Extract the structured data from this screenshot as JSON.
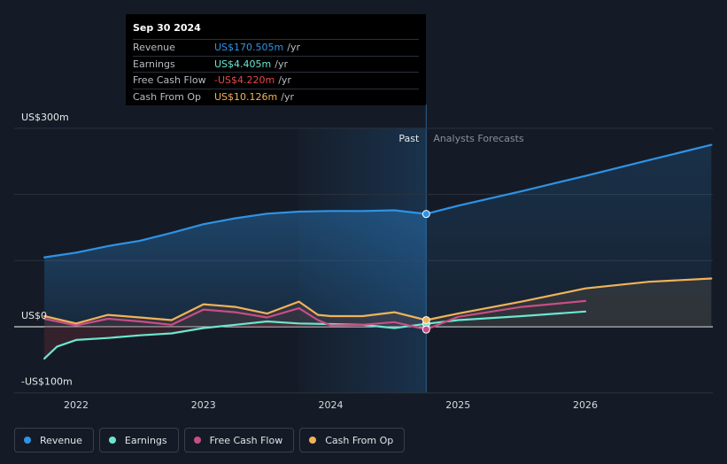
{
  "tooltip": {
    "date": "Sep 30 2024",
    "rows": [
      {
        "name": "Revenue",
        "value": "US$170.505m",
        "unit": "/yr",
        "color": "#2e93e6"
      },
      {
        "name": "Earnings",
        "value": "US$4.405m",
        "unit": "/yr",
        "color": "#6ce6cf"
      },
      {
        "name": "Free Cash Flow",
        "value": "-US$4.220m",
        "unit": "/yr",
        "color": "#e8484a"
      },
      {
        "name": "Cash From Op",
        "value": "US$10.126m",
        "unit": "/yr",
        "color": "#f0b35a"
      }
    ]
  },
  "labels": {
    "past": "Past",
    "forecast": "Analysts Forecasts"
  },
  "legend": [
    {
      "name": "Revenue",
      "color": "#2e93e6"
    },
    {
      "name": "Earnings",
      "color": "#6ce6cf"
    },
    {
      "name": "Free Cash Flow",
      "color": "#c94d86"
    },
    {
      "name": "Cash From Op",
      "color": "#f0b35a"
    }
  ],
  "chart_data": {
    "type": "line",
    "y_tick_labels": [
      "US$300m",
      "US$0",
      "-US$100m"
    ],
    "ylim": [
      -100,
      300
    ],
    "x_tick_labels": [
      "2022",
      "2023",
      "2024",
      "2025",
      "2026"
    ],
    "x_ticks": [
      2022,
      2023,
      2024,
      2025,
      2026
    ],
    "xlim": [
      2021.5,
      2026.99
    ],
    "past_end": 2024.75,
    "grid": true,
    "legend_position": "bottom-left",
    "series": [
      {
        "name": "Revenue",
        "color": "#2e93e6",
        "x": [
          2021.75,
          2022.0,
          2022.25,
          2022.5,
          2022.75,
          2023.0,
          2023.25,
          2023.5,
          2023.75,
          2024.0,
          2024.25,
          2024.5,
          2024.75,
          2025.0,
          2025.5,
          2026.0,
          2026.5,
          2026.99
        ],
        "y": [
          105,
          112,
          122,
          130,
          142,
          155,
          164,
          171,
          174,
          175,
          175,
          176,
          170.5,
          183,
          205,
          228,
          252,
          275
        ]
      },
      {
        "name": "Earnings",
        "color": "#6ce6cf",
        "x": [
          2021.75,
          2021.85,
          2022.0,
          2022.25,
          2022.5,
          2022.75,
          2023.0,
          2023.25,
          2023.5,
          2023.75,
          2024.0,
          2024.25,
          2024.5,
          2024.75,
          2025.0,
          2025.5,
          2026.0
        ],
        "y": [
          -48,
          -30,
          -20,
          -17,
          -13,
          -10,
          -2,
          3,
          8,
          5,
          4,
          3,
          -2,
          4.4,
          10,
          16,
          23
        ]
      },
      {
        "name": "Free Cash Flow",
        "color": "#c94d86",
        "x": [
          2021.75,
          2022.0,
          2022.25,
          2022.5,
          2022.75,
          2023.0,
          2023.25,
          2023.5,
          2023.75,
          2023.9,
          2024.0,
          2024.25,
          2024.5,
          2024.75,
          2025.0,
          2025.5,
          2026.0
        ],
        "y": [
          12,
          2,
          12,
          8,
          3,
          26,
          22,
          14,
          28,
          10,
          2,
          3,
          7,
          -4.2,
          15,
          30,
          39
        ]
      },
      {
        "name": "Cash From Op",
        "color": "#f0b35a",
        "x": [
          2021.75,
          2022.0,
          2022.25,
          2022.5,
          2022.75,
          2023.0,
          2023.25,
          2023.5,
          2023.75,
          2023.9,
          2024.0,
          2024.25,
          2024.5,
          2024.75,
          2025.0,
          2025.5,
          2026.0,
          2026.5,
          2026.99
        ],
        "y": [
          16,
          5,
          18,
          14,
          10,
          34,
          30,
          20,
          38,
          18,
          16,
          16,
          22,
          10.1,
          20,
          38,
          58,
          68,
          73
        ]
      }
    ]
  }
}
